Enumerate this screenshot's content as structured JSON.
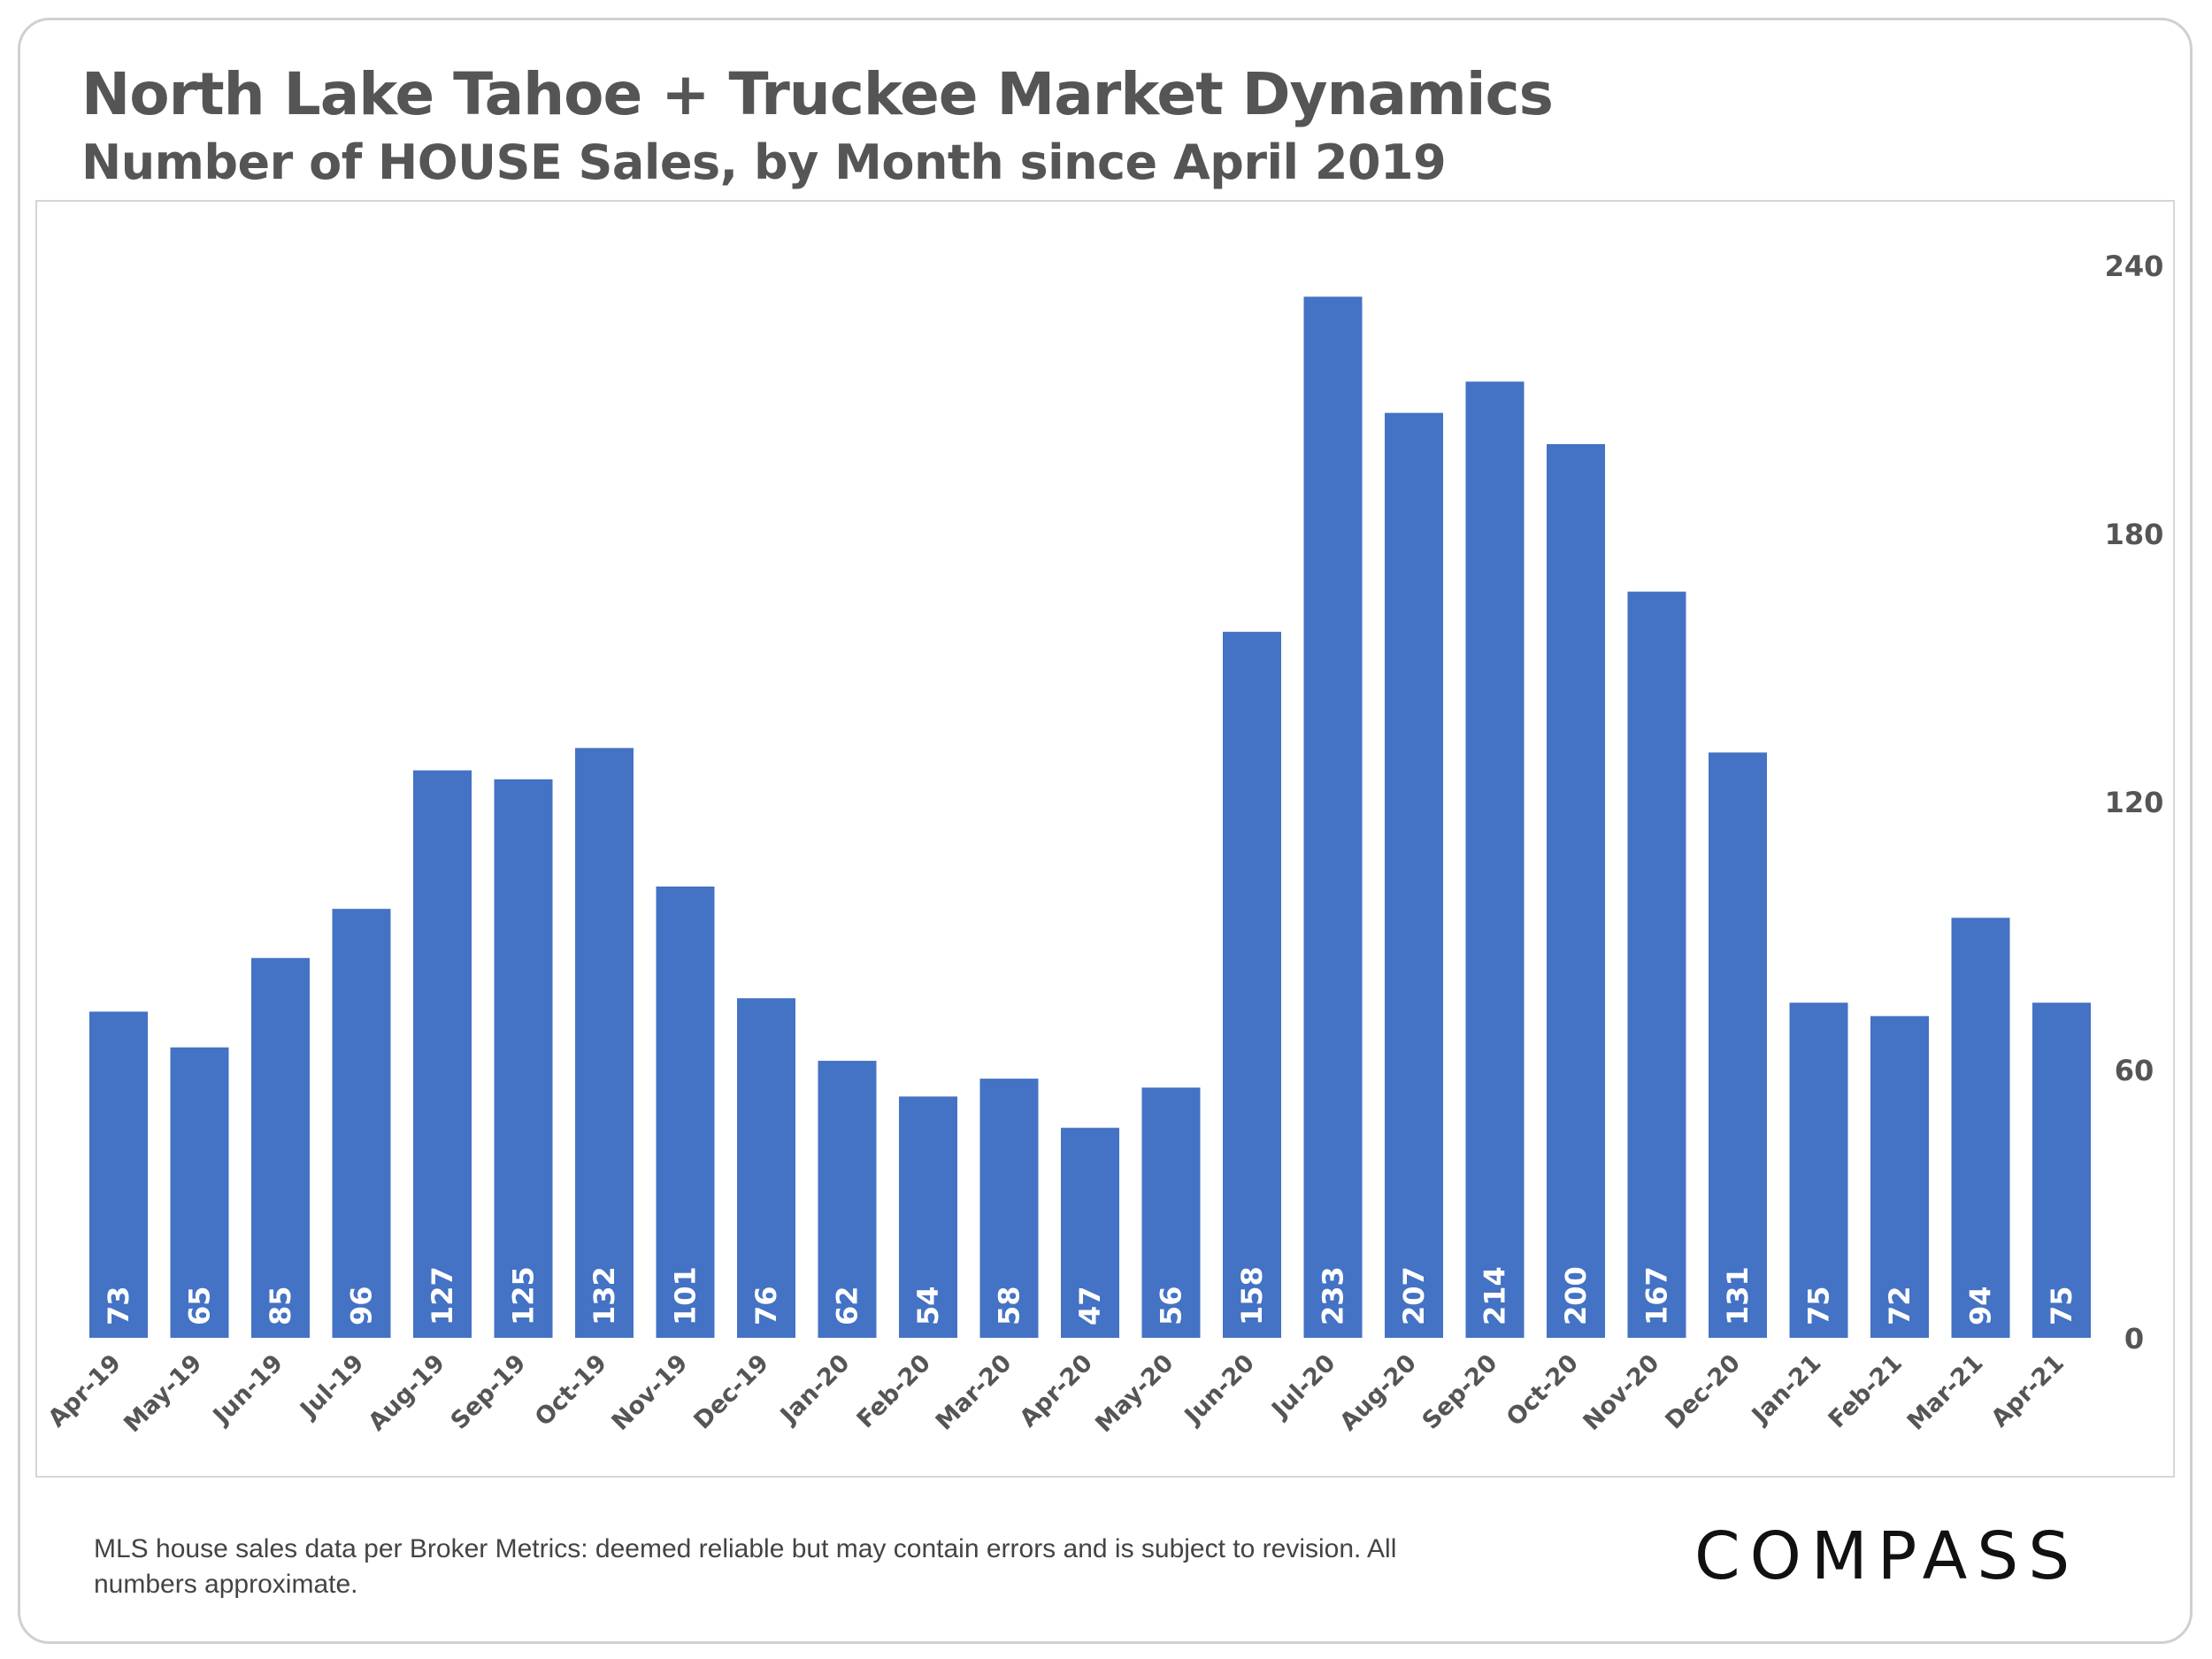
{
  "header": {
    "title": "North Lake Tahoe + Truckee Market Dynamics",
    "subtitle": "Number of HOUSE Sales, by Month since April 2019"
  },
  "footer": {
    "note": "MLS house sales data per Broker Metrics: deemed reliable but may contain errors and is subject to revision. All numbers approximate.",
    "logo_text": "COMPASS"
  },
  "colors": {
    "bar": "#4472C4",
    "bar_label": "#ffffff",
    "axis_text": "#555555"
  },
  "chart_data": {
    "type": "bar",
    "title": "North Lake Tahoe + Truckee Market Dynamics",
    "subtitle": "Number of HOUSE Sales, by Month since April 2019",
    "categories": [
      "Apr-19",
      "May-19",
      "Jun-19",
      "Jul-19",
      "Aug-19",
      "Sep-19",
      "Oct-19",
      "Nov-19",
      "Dec-19",
      "Jan-20",
      "Feb-20",
      "Mar-20",
      "Apr-20",
      "May-20",
      "Jun-20",
      "Jul-20",
      "Aug-20",
      "Sep-20",
      "Oct-20",
      "Nov-20",
      "Dec-20",
      "Jan-21",
      "Feb-21",
      "Mar-21",
      "Apr-21"
    ],
    "values": [
      73,
      65,
      85,
      96,
      127,
      125,
      132,
      101,
      76,
      62,
      54,
      58,
      47,
      56,
      158,
      233,
      207,
      214,
      200,
      167,
      131,
      75,
      72,
      94,
      75
    ],
    "y_axis": {
      "side": "right",
      "min": 0,
      "max": 240,
      "ticks": [
        0,
        60,
        120,
        180,
        240
      ]
    },
    "xlabel": "",
    "ylabel": "",
    "grid": false,
    "data_labels": "inside-base, rotated vertical",
    "x_tick_rotation": "diagonal"
  }
}
